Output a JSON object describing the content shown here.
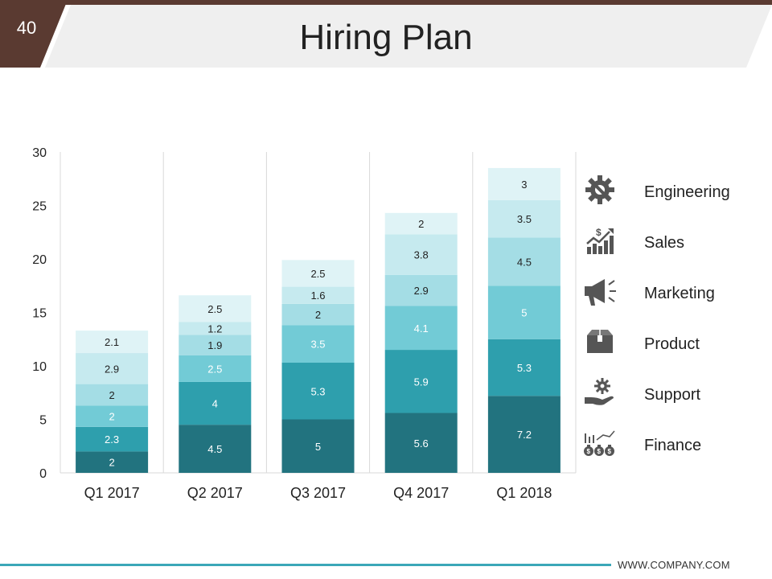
{
  "slide": {
    "number": "40",
    "title": "Hiring Plan",
    "footer": "WWW.COMPANY.COM",
    "colors": {
      "accent_brown": "#5a3a31",
      "banner_gray": "#efefef",
      "footer_line": "#3ba7b8"
    }
  },
  "legend": [
    {
      "label": "Engineering",
      "icon": "gear-wrench-icon"
    },
    {
      "label": "Sales",
      "icon": "sales-growth-icon"
    },
    {
      "label": "Marketing",
      "icon": "megaphone-icon"
    },
    {
      "label": "Product",
      "icon": "product-box-icon"
    },
    {
      "label": "Support",
      "icon": "hand-gear-icon"
    },
    {
      "label": "Finance",
      "icon": "money-bags-icon"
    }
  ],
  "chart_data": {
    "type": "bar",
    "stacked": true,
    "title": "Hiring Plan",
    "xlabel": "",
    "ylabel": "",
    "ylim": [
      0,
      30
    ],
    "yticks": [
      0,
      5,
      10,
      15,
      20,
      25,
      30
    ],
    "categories": [
      "Q1 2017",
      "Q2 2017",
      "Q3 2017",
      "Q4 2017",
      "Q1 2018"
    ],
    "series": [
      {
        "name": "Engineering",
        "color": "#22737f",
        "label_color": "#ffffff",
        "values": [
          2,
          4.5,
          5,
          5.6,
          7.2
        ]
      },
      {
        "name": "Sales",
        "color": "#2e9fad",
        "label_color": "#ffffff",
        "values": [
          2.3,
          4,
          5.3,
          5.9,
          5.3
        ]
      },
      {
        "name": "Marketing",
        "color": "#72cbd6",
        "label_color": "#ffffff",
        "values": [
          2,
          2.5,
          3.5,
          4.1,
          5
        ]
      },
      {
        "name": "Product",
        "color": "#a4dde5",
        "label_color": "#222222",
        "values": [
          2,
          1.9,
          2,
          2.9,
          4.5
        ]
      },
      {
        "name": "Support",
        "color": "#c6eaef",
        "label_color": "#222222",
        "values": [
          2.9,
          1.2,
          1.6,
          3.8,
          3.5
        ]
      },
      {
        "name": "Finance",
        "color": "#dff3f6",
        "label_color": "#222222",
        "values": [
          2.1,
          2.5,
          2.5,
          2,
          3
        ]
      }
    ]
  }
}
